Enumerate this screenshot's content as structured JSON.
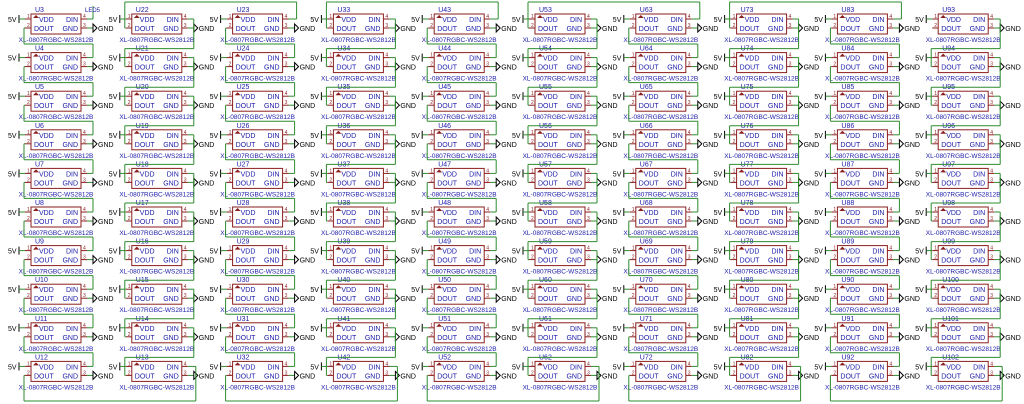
{
  "colors": {
    "wire": "#2e8b2e",
    "body": "#8b1e1e",
    "pin": "#8b1e1e",
    "pin_label": "#1a1aa8",
    "pin_number": "#8b1e1e",
    "designator": "#1a1aa8",
    "part": "#1a1aa8",
    "net": "#000000",
    "background": "#ffffff"
  },
  "part_value": "XL-0807RGBC-WS2812B",
  "pin_labels": {
    "vdd": "VDD",
    "din": "DIN",
    "dout": "DOUT",
    "gnd": "GND"
  },
  "pin_numbers": {
    "vdd": "1",
    "dout": "2",
    "gnd": "3",
    "din": "4"
  },
  "nets": {
    "power": "5V",
    "ground": "GND",
    "data_in": "LED5"
  },
  "columns": [
    {
      "designators": [
        "U3",
        "U4",
        "U5",
        "U6",
        "U7",
        "U8",
        "U9",
        "U10",
        "U11",
        "U12"
      ]
    },
    {
      "designators": [
        "U22",
        "U21",
        "U20",
        "U19",
        "U18",
        "U17",
        "U16",
        "U15",
        "U14",
        "U13"
      ]
    },
    {
      "designators": [
        "U23",
        "U24",
        "U25",
        "U26",
        "U27",
        "U28",
        "U29",
        "U30",
        "U31",
        "U32"
      ]
    },
    {
      "designators": [
        "U33",
        "U34",
        "U35",
        "U36",
        "U37",
        "U38",
        "U39",
        "U40",
        "U41",
        "U42"
      ]
    },
    {
      "designators": [
        "U43",
        "U44",
        "U45",
        "U46",
        "U47",
        "U48",
        "U49",
        "U50",
        "U51",
        "U52"
      ]
    },
    {
      "designators": [
        "U53",
        "U54",
        "U55",
        "U56",
        "U57",
        "U58",
        "U59",
        "U60",
        "U61",
        "U62"
      ]
    },
    {
      "designators": [
        "U63",
        "U64",
        "U65",
        "U66",
        "U67",
        "U68",
        "U69",
        "U70",
        "U71",
        "U72"
      ]
    },
    {
      "designators": [
        "U73",
        "U74",
        "U75",
        "U76",
        "U77",
        "U78",
        "U79",
        "U80",
        "U81",
        "U82"
      ]
    },
    {
      "designators": [
        "U83",
        "U84",
        "U85",
        "U86",
        "U87",
        "U88",
        "U89",
        "U90",
        "U91",
        "U92"
      ]
    },
    {
      "designators": [
        "U93",
        "U94",
        "U95",
        "U96",
        "U97",
        "U98",
        "U99",
        "U100",
        "U101",
        "U102"
      ]
    }
  ]
}
